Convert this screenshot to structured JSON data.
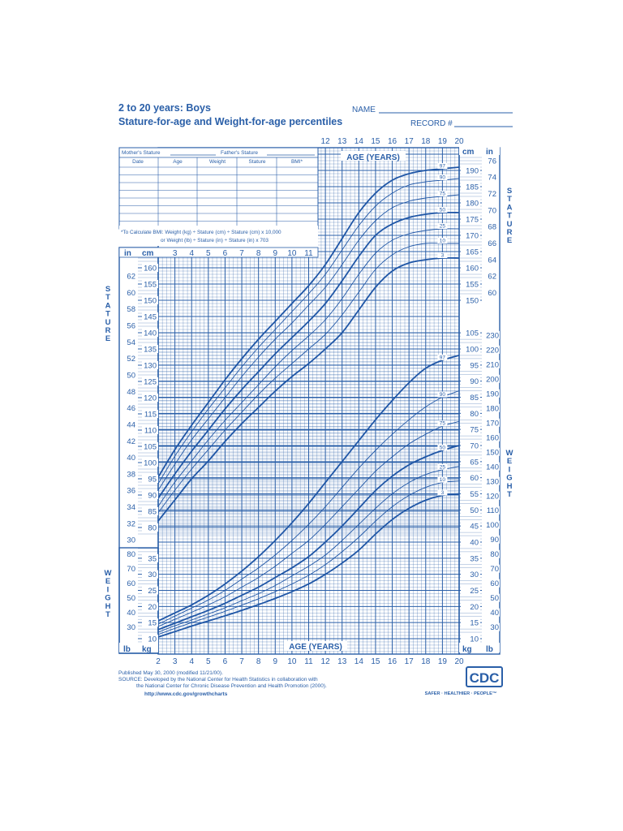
{
  "header": {
    "title": "2 to 20 years: Boys",
    "subtitle": "Stature-for-age and Weight-for-age percentiles",
    "name_label": "NAME",
    "record_label": "RECORD #"
  },
  "record_table": {
    "mothers_stature": "Mother's Stature",
    "fathers_stature": "Father's Stature",
    "columns": [
      "Date",
      "Age",
      "Weight",
      "Stature",
      "BMI*"
    ]
  },
  "bmi_note": {
    "line1": "*To Calculate BMI: Weight (kg) ÷ Stature (cm) ÷ Stature (cm) x 10,000",
    "line2": "or Weight (lb) ÷ Stature (in) ÷ Stature (in) x 703"
  },
  "axis_labels": {
    "age_years": "AGE (YEARS)",
    "stature_vertical": "STATURE",
    "weight_vertical": "WEIGHT",
    "in": "in",
    "cm": "cm",
    "lb": "lb",
    "kg": "kg"
  },
  "footer": {
    "published": "Published May 30, 2000 (modified 11/21/00).",
    "source1": "SOURCE: Developed by the National Center for Health Statistics in collaboration with",
    "source2": "the National Center for Chronic Disease Prevention and Health Promotion (2000).",
    "url": "http://www.cdc.gov/growthcharts",
    "logo": "CDC",
    "tagline": "SAFER · HEALTHIER · PEOPLE™"
  },
  "colors": {
    "ink": "#2a5fa8",
    "curve": "#1f56a6",
    "background": "#ffffff"
  },
  "chart_data": [
    {
      "type": "line",
      "title": "Stature-for-age",
      "xlabel": "AGE (YEARS)",
      "ylabel": "STATURE",
      "xlim": [
        2,
        20
      ],
      "ylim_cm": [
        76,
        196
      ],
      "x": [
        2,
        3,
        4,
        5,
        6,
        7,
        8,
        9,
        10,
        11,
        12,
        13,
        14,
        15,
        16,
        17,
        18,
        19,
        20
      ],
      "series": [
        {
          "name": "97",
          "values": [
            95.5,
            104,
            111.5,
            118.5,
            125.5,
            132,
            138,
            143.5,
            149,
            154.5,
            161,
            169,
            177,
            183,
            187,
            189,
            190,
            190.5,
            191
          ]
        },
        {
          "name": "90",
          "values": [
            93.5,
            102,
            109.5,
            116.5,
            123,
            129.5,
            135.5,
            141,
            146.5,
            152,
            158,
            165.5,
            173,
            179,
            183,
            185.5,
            186.5,
            187,
            187.5
          ]
        },
        {
          "name": "75",
          "values": [
            91.5,
            99.5,
            107,
            113.5,
            120,
            126.5,
            132.5,
            138,
            143,
            148.5,
            154,
            161,
            168.5,
            174.5,
            178.5,
            180.5,
            181.5,
            182,
            182.5
          ]
        },
        {
          "name": "50",
          "values": [
            89,
            96.5,
            103.5,
            110,
            116.5,
            122.5,
            128,
            133.5,
            138.5,
            143.5,
            149,
            156,
            163.5,
            170,
            173.5,
            175.5,
            176.5,
            177,
            177
          ]
        },
        {
          "name": "25",
          "values": [
            86.5,
            94,
            100.5,
            107,
            113,
            118.5,
            124,
            129.5,
            134.5,
            139,
            144,
            150.5,
            158,
            164.5,
            168.5,
            170.5,
            171.5,
            172,
            172
          ]
        },
        {
          "name": "10",
          "values": [
            84.5,
            91.5,
            98,
            104,
            110,
            115.5,
            121,
            126,
            130.5,
            135,
            139.5,
            145.5,
            152.5,
            159.5,
            164,
            166.5,
            167.5,
            167.5,
            167.5
          ]
        },
        {
          "name": "3",
          "values": [
            82,
            88.5,
            95,
            100.5,
            106.5,
            112,
            117,
            122,
            126.5,
            130.5,
            135,
            140,
            147,
            154,
            159,
            161.5,
            162.5,
            163,
            163
          ]
        }
      ]
    },
    {
      "type": "line",
      "title": "Weight-for-age",
      "xlabel": "AGE (YEARS)",
      "ylabel": "WEIGHT",
      "xlim": [
        2,
        20
      ],
      "ylim_kg": [
        5,
        105
      ],
      "x": [
        2,
        3,
        4,
        5,
        6,
        7,
        8,
        9,
        10,
        11,
        12,
        13,
        14,
        15,
        16,
        17,
        18,
        19,
        20
      ],
      "series": [
        {
          "name": "97",
          "values": [
            15.5,
            18,
            20.5,
            23.5,
            27,
            31,
            35.5,
            40.5,
            46,
            52,
            58.5,
            65,
            71.5,
            78,
            84,
            89.5,
            94,
            96.5,
            98
          ]
        },
        {
          "name": "90",
          "values": [
            14.5,
            17,
            19.5,
            22,
            25,
            28.5,
            32,
            36,
            40.5,
            45.5,
            51,
            57,
            63,
            68.5,
            73.5,
            78,
            82,
            85,
            87
          ]
        },
        {
          "name": "75",
          "values": [
            13.8,
            16,
            18.2,
            20.5,
            23,
            26,
            29,
            32.5,
            36.5,
            40.5,
            45.5,
            51,
            56.5,
            62,
            66.5,
            70.5,
            73.5,
            76,
            77.5
          ]
        },
        {
          "name": "50",
          "values": [
            12.8,
            14.8,
            16.8,
            18.8,
            21,
            23.5,
            26,
            29,
            32,
            35.5,
            40,
            45,
            50.5,
            56,
            60.5,
            64,
            66.5,
            68.5,
            70
          ]
        },
        {
          "name": "25",
          "values": [
            12,
            14,
            15.8,
            17.7,
            19.6,
            21.8,
            24,
            26.5,
            29.5,
            32.5,
            36,
            40.5,
            45.5,
            50.5,
            55,
            58.5,
            61,
            62.5,
            63.5
          ]
        },
        {
          "name": "10",
          "values": [
            11.3,
            13.2,
            15,
            16.7,
            18.5,
            20.4,
            22.4,
            24.6,
            27,
            29.7,
            33,
            37,
            41.5,
            46.5,
            51,
            54.5,
            57,
            58.5,
            59
          ]
        },
        {
          "name": "3",
          "values": [
            10.5,
            12.2,
            13.9,
            15.5,
            17.1,
            18.8,
            20.6,
            22.5,
            24.6,
            27,
            30,
            33.5,
            37.5,
            42.5,
            47,
            50.5,
            53,
            54.5,
            55
          ]
        }
      ]
    }
  ]
}
